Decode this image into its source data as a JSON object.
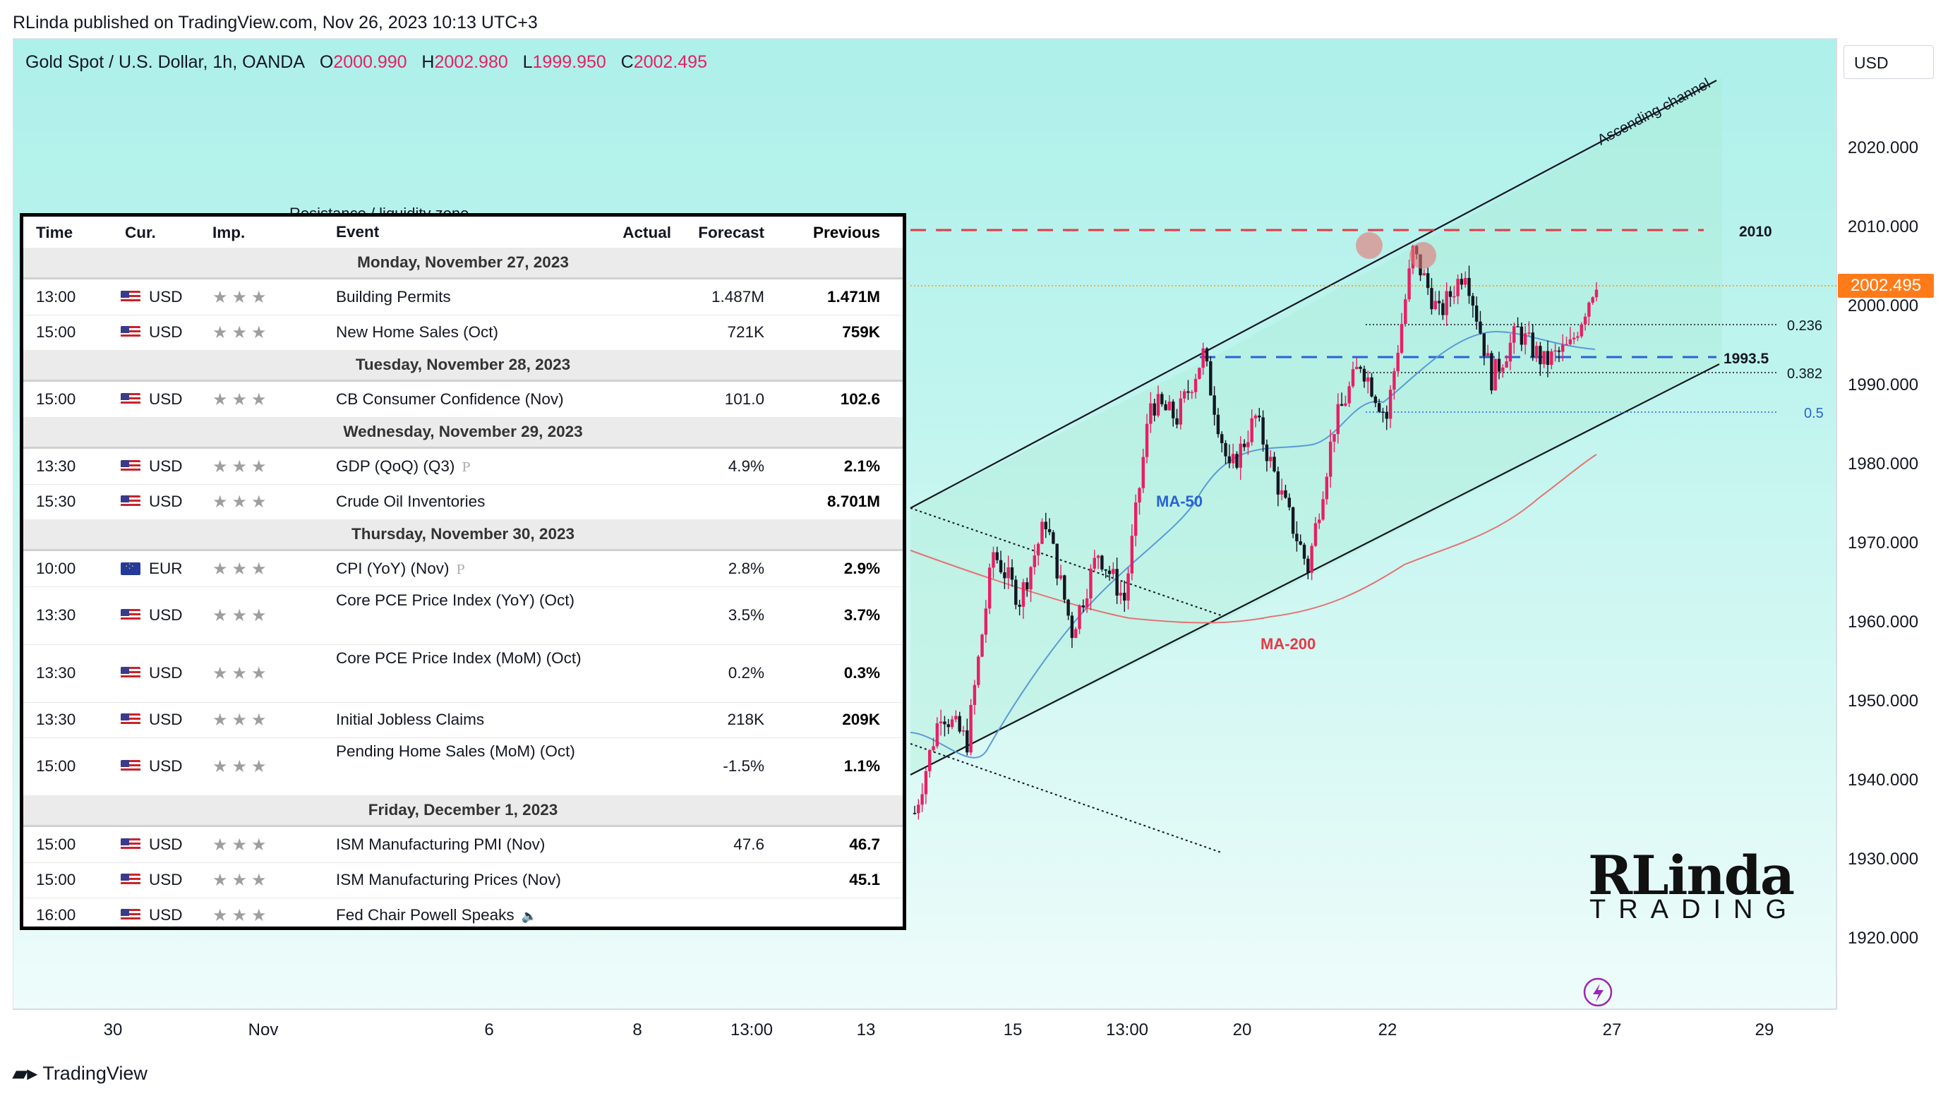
{
  "header": {
    "published_line": "RLinda published on TradingView.com, Nov 26, 2023 10:13 UTC+3"
  },
  "symbol": {
    "name": "Gold Spot / U.S. Dollar, 1h, OANDA",
    "open_label": "O",
    "open": "2000.990",
    "high_label": "H",
    "high": "2002.980",
    "low_label": "L",
    "low": "1999.950",
    "close_label": "C",
    "close": "2002.495"
  },
  "currency_button": "USD",
  "current_price_tag": "2002.495",
  "price_scale": [
    "2020.000",
    "2010.000",
    "2000.000",
    "1990.000",
    "1980.000",
    "1970.000",
    "1960.000",
    "1950.000",
    "1940.000",
    "1930.000",
    "1920.000"
  ],
  "time_scale": [
    "30",
    "Nov",
    "6",
    "8",
    "13:00",
    "13",
    "15",
    "13:00",
    "20",
    "22",
    "27",
    "29"
  ],
  "annotations": {
    "channel": "Ascending channel",
    "resistance": "Resistance / liquidity zone",
    "level_2010": "2010",
    "level_1993": "1993.5",
    "fib_0236": "0.236",
    "fib_0382": "0.382",
    "fib_05": "0.5",
    "ma50": "MA-50",
    "ma200": "MA-200"
  },
  "colors": {
    "bull": "#e91e63",
    "bear": "#131722",
    "ma50": "#5b9bd5",
    "ma200": "#e57373",
    "level_red": "#e53946",
    "level_blue": "#2a62d6",
    "price_tag": "#ff7b1a"
  },
  "calendar": {
    "headers": {
      "time": "Time",
      "cur": "Cur.",
      "imp": "Imp.",
      "event": "Event",
      "actual": "Actual",
      "forecast": "Forecast",
      "previous": "Previous"
    },
    "importance_glyph": "★★★",
    "days": [
      {
        "label": "Monday, November 27, 2023",
        "events": [
          {
            "time": "13:00",
            "flag": "us",
            "cur": "USD",
            "event": "Building Permits",
            "actual": "",
            "forecast": "1.487M",
            "previous": "1.471M"
          },
          {
            "time": "15:00",
            "flag": "us",
            "cur": "USD",
            "event": "New Home Sales (Oct)",
            "actual": "",
            "forecast": "721K",
            "previous": "759K"
          }
        ]
      },
      {
        "label": "Tuesday, November 28, 2023",
        "events": [
          {
            "time": "15:00",
            "flag": "us",
            "cur": "USD",
            "event": "CB Consumer Confidence (Nov)",
            "actual": "",
            "forecast": "101.0",
            "previous": "102.6"
          }
        ]
      },
      {
        "label": "Wednesday, November 29, 2023",
        "events": [
          {
            "time": "13:30",
            "flag": "us",
            "cur": "USD",
            "event": "GDP (QoQ) (Q3)",
            "tag": "P",
            "actual": "",
            "forecast": "4.9%",
            "previous": "2.1%"
          },
          {
            "time": "15:30",
            "flag": "us",
            "cur": "USD",
            "event": "Crude Oil Inventories",
            "actual": "",
            "forecast": "",
            "previous": "8.701M"
          }
        ]
      },
      {
        "label": "Thursday, November 30, 2023",
        "events": [
          {
            "time": "10:00",
            "flag": "eu",
            "cur": "EUR",
            "event": "CPI (YoY) (Nov)",
            "tag": "P",
            "actual": "",
            "forecast": "2.8%",
            "previous": "2.9%"
          },
          {
            "time": "13:30",
            "flag": "us",
            "cur": "USD",
            "event": "Core PCE Price Index (YoY) (Oct)",
            "actual": "",
            "forecast": "3.5%",
            "previous": "3.7%"
          },
          {
            "time": "13:30",
            "flag": "us",
            "cur": "USD",
            "event": "Core PCE Price Index (MoM) (Oct)",
            "actual": "",
            "forecast": "0.2%",
            "previous": "0.3%"
          },
          {
            "time": "13:30",
            "flag": "us",
            "cur": "USD",
            "event": "Initial Jobless Claims",
            "actual": "",
            "forecast": "218K",
            "previous": "209K"
          },
          {
            "time": "15:00",
            "flag": "us",
            "cur": "USD",
            "event": "Pending Home Sales (MoM) (Oct)",
            "actual": "",
            "forecast": "-1.5%",
            "previous": "1.1%"
          }
        ]
      },
      {
        "label": "Friday, December 1, 2023",
        "events": [
          {
            "time": "15:00",
            "flag": "us",
            "cur": "USD",
            "event": "ISM Manufacturing PMI (Nov)",
            "actual": "",
            "forecast": "47.6",
            "previous": "46.7"
          },
          {
            "time": "15:00",
            "flag": "us",
            "cur": "USD",
            "event": "ISM Manufacturing Prices (Nov)",
            "actual": "",
            "forecast": "",
            "previous": "45.1"
          },
          {
            "time": "16:00",
            "flag": "us",
            "cur": "USD",
            "event": "Fed Chair Powell Speaks",
            "tag": "speaker",
            "actual": "",
            "forecast": "",
            "previous": ""
          }
        ]
      }
    ]
  },
  "brand": {
    "big": "RLinda",
    "small": "TRADING"
  },
  "footer": "TradingView",
  "chart_data": {
    "type": "candlestick",
    "title": "Gold Spot / U.S. Dollar, 1h, OANDA",
    "ylim": [
      1910,
      2030
    ],
    "levels": [
      2010,
      1993.5
    ],
    "fib_levels": {
      "0.236": 1997.5,
      "0.382": 1991.5,
      "0.5": 1986.5
    },
    "close_path": [
      1935,
      1948,
      1944,
      1968,
      1962,
      1972,
      1958,
      1968,
      1962,
      1987,
      1985,
      1993,
      1978,
      1985,
      1975,
      1966,
      1984,
      1992,
      1985,
      2006,
      1998,
      2004,
      1990,
      1996,
      1992,
      1994,
      2002.495
    ]
  }
}
